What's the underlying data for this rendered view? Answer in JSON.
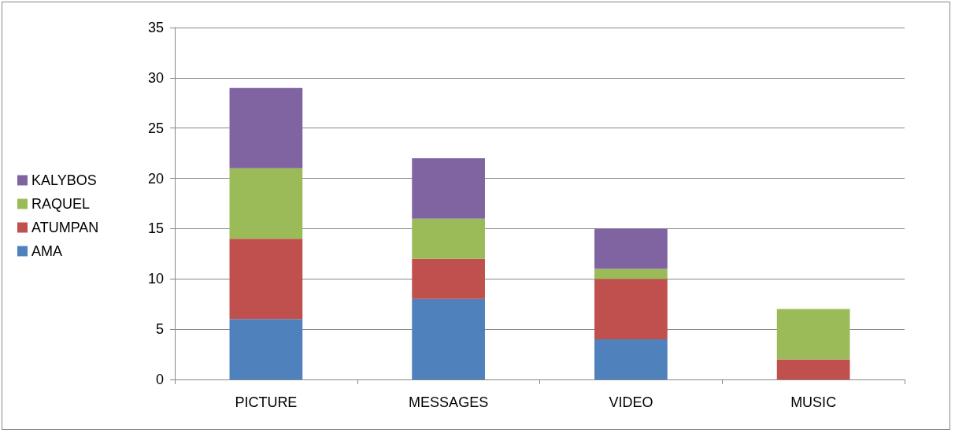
{
  "chart_data": {
    "type": "bar",
    "stacked": true,
    "categories": [
      "PICTURE",
      "MESSAGES",
      "VIDEO",
      "MUSIC"
    ],
    "series": [
      {
        "name": "AMA",
        "color": "#4f81bd",
        "values": [
          6,
          8,
          4,
          0
        ]
      },
      {
        "name": "ATUMPAN",
        "color": "#c0504d",
        "values": [
          8,
          4,
          6,
          2
        ]
      },
      {
        "name": "RAQUEL",
        "color": "#9bbb59",
        "values": [
          7,
          4,
          1,
          5
        ]
      },
      {
        "name": "KALYBOS",
        "color": "#8064a2",
        "values": [
          8,
          6,
          4,
          0
        ]
      }
    ],
    "ylim": [
      0,
      35
    ],
    "yticks": [
      0,
      5,
      10,
      15,
      20,
      25,
      30,
      35
    ],
    "grid": "y",
    "legend": "left"
  }
}
